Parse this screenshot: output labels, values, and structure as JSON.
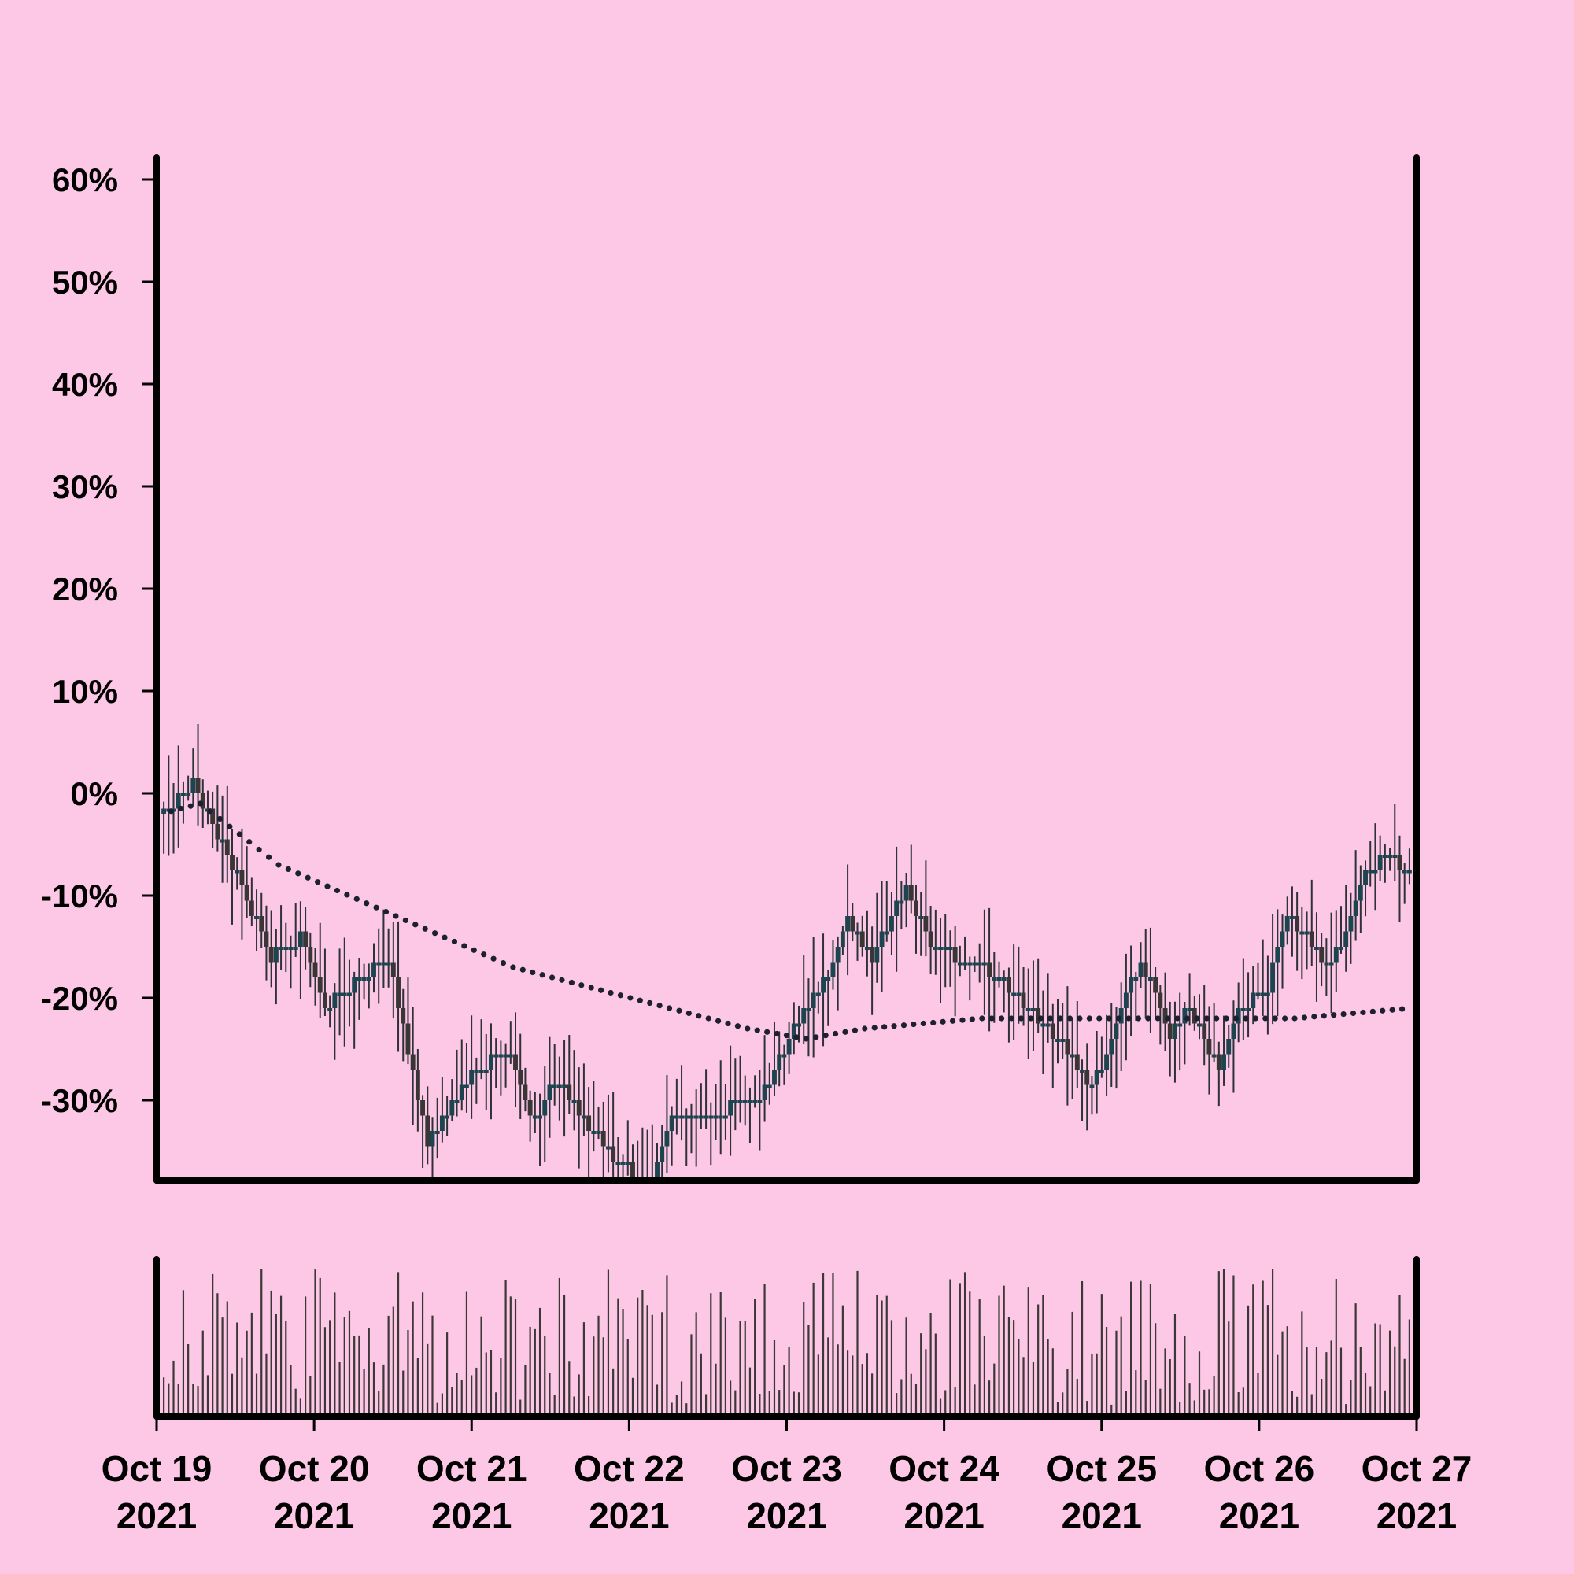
{
  "chart_data": {
    "type": "candlestick",
    "title": "",
    "xlabel": "",
    "ylabel": "",
    "ylim": [
      -38,
      62
    ],
    "y_ticks": [
      "60%",
      "50%",
      "40%",
      "30%",
      "20%",
      "10%",
      "0%",
      "-10%",
      "-20%",
      "-30%"
    ],
    "x_ticks": [
      {
        "month_day": "Oct 19",
        "year": "2021"
      },
      {
        "month_day": "Oct 20",
        "year": "2021"
      },
      {
        "month_day": "Oct 21",
        "year": "2021"
      },
      {
        "month_day": "Oct 22",
        "year": "2021"
      },
      {
        "month_day": "Oct 23",
        "year": "2021"
      },
      {
        "month_day": "Oct 24",
        "year": "2021"
      },
      {
        "month_day": "Oct 25",
        "year": "2021"
      },
      {
        "month_day": "Oct 26",
        "year": "2021"
      },
      {
        "month_day": "Oct 27",
        "year": "2021"
      }
    ],
    "x_range": [
      "2021-10-19",
      "2021-10-27"
    ],
    "grid": false,
    "legend": "none",
    "candle_interval": "hourly",
    "close_path_anchors": [
      {
        "t": 0,
        "v": -2
      },
      {
        "t": 6,
        "v": 1
      },
      {
        "t": 13,
        "v": -6
      },
      {
        "t": 22,
        "v": -16
      },
      {
        "t": 28,
        "v": -14
      },
      {
        "t": 33,
        "v": -21
      },
      {
        "t": 46,
        "v": -16
      },
      {
        "t": 49,
        "v": -23
      },
      {
        "t": 54,
        "v": -34
      },
      {
        "t": 64,
        "v": -27
      },
      {
        "t": 70,
        "v": -25
      },
      {
        "t": 76,
        "v": -32
      },
      {
        "t": 80,
        "v": -28
      },
      {
        "t": 93,
        "v": -36
      },
      {
        "t": 100,
        "v": -38
      },
      {
        "t": 104,
        "v": -32
      },
      {
        "t": 122,
        "v": -30
      },
      {
        "t": 128,
        "v": -24
      },
      {
        "t": 137,
        "v": -17
      },
      {
        "t": 140,
        "v": -12
      },
      {
        "t": 145,
        "v": -16
      },
      {
        "t": 152,
        "v": -9
      },
      {
        "t": 157,
        "v": -15
      },
      {
        "t": 168,
        "v": -17
      },
      {
        "t": 173,
        "v": -19
      },
      {
        "t": 183,
        "v": -24
      },
      {
        "t": 190,
        "v": -29
      },
      {
        "t": 200,
        "v": -16
      },
      {
        "t": 206,
        "v": -24
      },
      {
        "t": 210,
        "v": -21
      },
      {
        "t": 216,
        "v": -27
      },
      {
        "t": 220,
        "v": -21
      },
      {
        "t": 226,
        "v": -19
      },
      {
        "t": 230,
        "v": -12
      },
      {
        "t": 239,
        "v": -17
      },
      {
        "t": 246,
        "v": -8
      },
      {
        "t": 250,
        "v": -6
      },
      {
        "t": 256,
        "v": -8
      }
    ],
    "moving_average_anchors": [
      {
        "t": 0,
        "v": -2
      },
      {
        "t": 8,
        "v": -1
      },
      {
        "t": 24,
        "v": -7
      },
      {
        "t": 48,
        "v": -12
      },
      {
        "t": 72,
        "v": -17
      },
      {
        "t": 96,
        "v": -20
      },
      {
        "t": 120,
        "v": -23
      },
      {
        "t": 132,
        "v": -24
      },
      {
        "t": 144,
        "v": -23
      },
      {
        "t": 168,
        "v": -22
      },
      {
        "t": 192,
        "v": -22
      },
      {
        "t": 216,
        "v": -22
      },
      {
        "t": 232,
        "v": -22
      },
      {
        "t": 256,
        "v": -21
      }
    ],
    "colors": {
      "background": "#fdc8e6",
      "axis": "#000000",
      "candle_up": "#1d4550",
      "candle_down": "#3a3636",
      "wick": "#2e3138",
      "volume_bar": "#3d3838",
      "moving_average": "#1c2030"
    }
  }
}
